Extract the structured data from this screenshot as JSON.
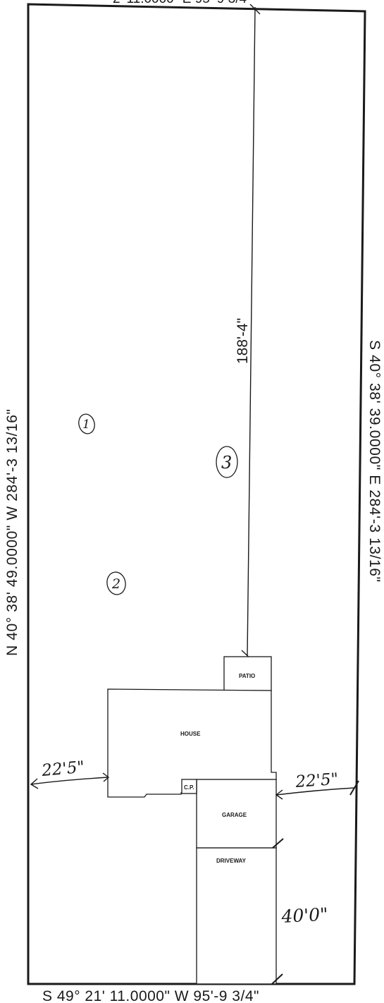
{
  "boundaries": {
    "top_partial": "2' 11.0000\" E 95'-9 3/4\"",
    "bottom": "S 49° 21' 11.0000\" W 95'-9 3/4\"",
    "left": "N 40° 38' 49.0000\" W 284'-3 13/16\"",
    "right": "S 40° 38' 39.0000\" E 284'-3 13/16\""
  },
  "dimensions": {
    "center_line": "188'-4\"",
    "setback_left": "22'5\"",
    "setback_right": "22'5\"",
    "driveway_length": "40'0\""
  },
  "structures": {
    "patio": "PATIO",
    "house": "HOUSE",
    "carport": "C.P.",
    "garage": "GARAGE",
    "driveway": "DRIVEWAY"
  },
  "markers": {
    "marker_1": "1",
    "marker_2": "2",
    "marker_3": "3"
  }
}
